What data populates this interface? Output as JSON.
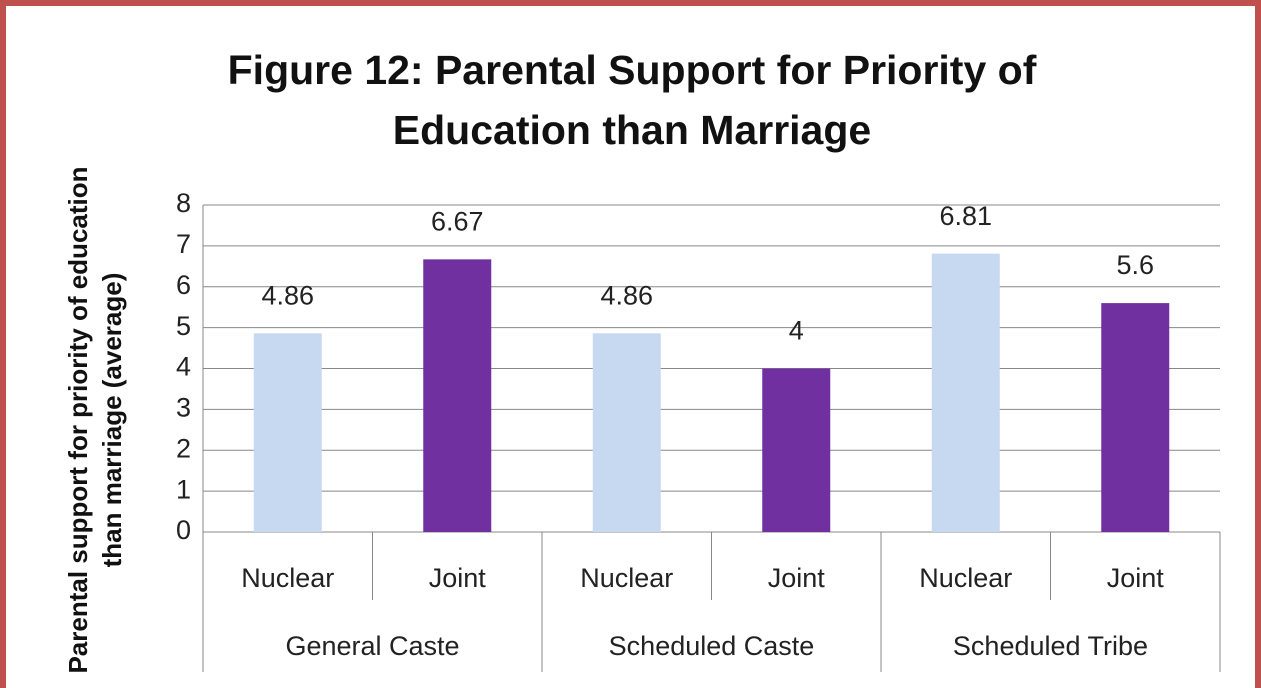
{
  "chart_data": {
    "type": "bar",
    "title": "Figure 12: Parental Support for Priority of Education than Marriage",
    "y_label": "Parental support for priority of education than marriage (average)",
    "categories": [
      "Nuclear",
      "Joint",
      "Nuclear",
      "Joint",
      "Nuclear",
      "Joint"
    ],
    "groups": [
      "General Caste",
      "Scheduled Caste",
      "Scheduled Tribe"
    ],
    "values": [
      4.86,
      6.67,
      4.86,
      4,
      6.81,
      5.6
    ],
    "colors": [
      "#c6d9f1",
      "#7030a0",
      "#c6d9f1",
      "#7030a0",
      "#c6d9f1",
      "#7030a0"
    ],
    "ylim": [
      0,
      8
    ],
    "yticks": [
      0,
      1,
      2,
      3,
      4,
      5,
      6,
      7,
      8
    ],
    "grid": true
  }
}
